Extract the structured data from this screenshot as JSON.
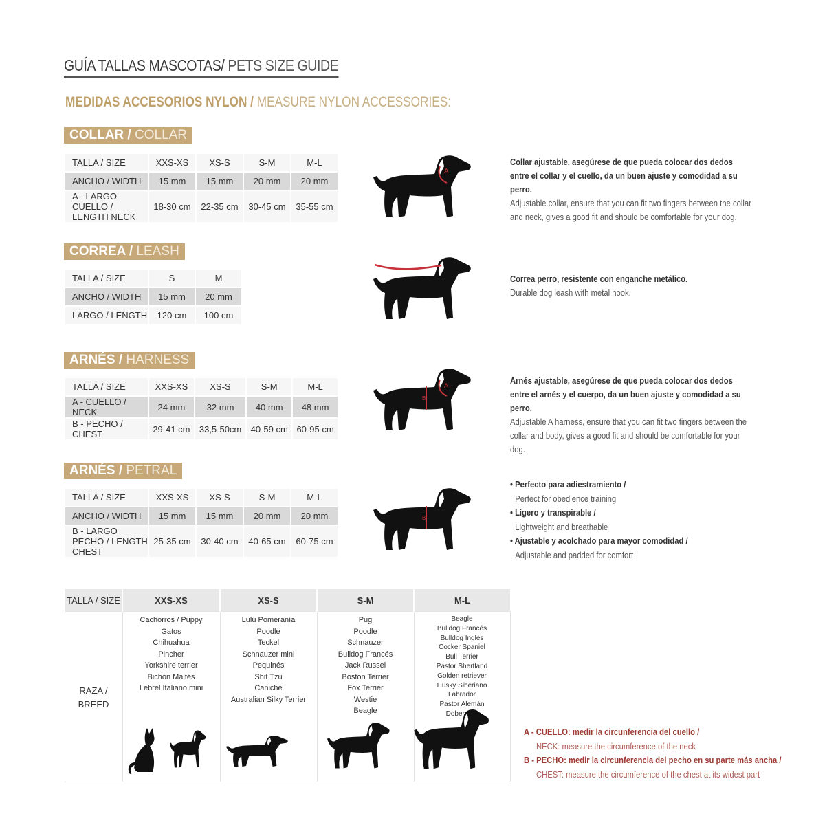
{
  "title": {
    "es": "GUÍA TALLAS MASCOTAS/",
    "en": " PETS SIZE GUIDE"
  },
  "subtitle": {
    "es": "MEDIDAS ACCESORIOS NYLON /",
    "en": " MEASURE NYLON ACCESSORIES:"
  },
  "colors": {
    "gold": "#c6a879",
    "red": "#c8323a",
    "text": "#333333"
  },
  "sections": [
    {
      "badge_es": "COLLAR /",
      "badge_en": " COLLAR",
      "rows": [
        [
          "TALLA / SIZE",
          "XXS-XS",
          "XS-S",
          "S-M",
          "M-L"
        ],
        [
          "ANCHO / WIDTH",
          "15 mm",
          "15 mm",
          "20 mm",
          "20 mm"
        ],
        [
          "A - LARGO CUELLO / LENGTH NECK",
          "18-30 cm",
          "22-35 cm",
          "30-45 cm",
          "35-55 cm"
        ]
      ],
      "desc_es": "Collar ajustable, asegúrese de que pueda colocar dos dedos entre el collar y el cuello, da un buen ajuste y comodidad a su perro.",
      "desc_en": "Adjustable collar, ensure that you can fit two fingers between the collar and neck, gives a good fit and should be comfortable for your dog.",
      "marker": "A"
    },
    {
      "badge_es": "CORREA /",
      "badge_en": " LEASH",
      "rows": [
        [
          "TALLA / SIZE",
          "S",
          "M"
        ],
        [
          "ANCHO / WIDTH",
          "15 mm",
          "20 mm"
        ],
        [
          "LARGO / LENGTH",
          "120 cm",
          "100 cm"
        ]
      ],
      "desc_es": "Correa perro, resistente con enganche metálico.",
      "desc_en": "Durable dog leash with metal hook."
    },
    {
      "badge_es": "ARNÉS /",
      "badge_en": " HARNESS",
      "rows": [
        [
          "TALLA / SIZE",
          "XXS-XS",
          "XS-S",
          "S-M",
          "M-L"
        ],
        [
          "A - CUELLO / NECK",
          "24 mm",
          "32 mm",
          "40 mm",
          "48 mm"
        ],
        [
          "B - PECHO / CHEST",
          "29-41 cm",
          "33,5-50cm",
          "40-59 cm",
          "60-95 cm"
        ]
      ],
      "desc_es": "Arnés ajustable, asegúrese de que pueda colocar dos dedos entre el arnés y el cuerpo, da un buen ajuste y comodidad a su perro.",
      "desc_en": "Adjustable A harness, ensure that you can fit two fingers between the collar and body, gives a good fit and should be comfortable for your dog.",
      "marker": "A B"
    },
    {
      "badge_es": "ARNÉS /",
      "badge_en": " PETRAL",
      "rows": [
        [
          "TALLA / SIZE",
          "XXS-XS",
          "XS-S",
          "S-M",
          "M-L"
        ],
        [
          "ANCHO / WIDTH",
          "15 mm",
          "15 mm",
          "20 mm",
          "20 mm"
        ],
        [
          "B - LARGO PECHO / LENGTH CHEST",
          "25-35 cm",
          "30-40 cm",
          "40-65 cm",
          "60-75 cm"
        ]
      ],
      "bullets": [
        {
          "es": "• Perfecto para adiestramiento /",
          "en": "Perfect for obedience training"
        },
        {
          "es": "• Ligero y transpirable /",
          "en": "Lightweight and breathable"
        },
        {
          "es": "• Ajustable y acolchado para mayor comodidad /",
          "en": "Adjustable and padded for comfort"
        }
      ],
      "marker": "B"
    }
  ],
  "breeds": {
    "header": [
      "TALLA /  SIZE",
      "XXS-XS",
      "XS-S",
      "S-M",
      "M-L"
    ],
    "row_label": "RAZA / BREED",
    "columns": [
      [
        "Cachorros / Puppy",
        "Gatos",
        "Chihuahua",
        "Pincher",
        "Yorkshire terrier",
        "Bichón Maltés",
        "Lebrel Italiano mini"
      ],
      [
        "Lulú Pomeranía",
        "Poodle",
        "Teckel",
        "Schnauzer mini",
        "Pequinés",
        "Shit Tzu",
        "Caniche",
        "Australian Silky Terrier"
      ],
      [
        "Pug",
        "Poodle",
        "Schnauzer",
        "Bulldog Francés",
        "Jack Russel",
        "Boston Terrier",
        "Fox Terrier",
        "Westie",
        "Beagle"
      ],
      [
        "Beagle",
        "Bulldog Francés",
        "Bulldog Inglés",
        "Cocker Spaniel",
        "Bull Terrier",
        "Pastor Shertland",
        "Golden retriever",
        "Husky Siberiano",
        "Labrador",
        "Pastor Alemán",
        "Doberman"
      ]
    ]
  },
  "legend": [
    {
      "es": "A - CUELLO: medir la circunferencia del cuello /",
      "en": "NECK: measure the circumference of the neck"
    },
    {
      "es": "B - PECHO: medir la circunferencia del pecho en su parte más ancha /",
      "en": "CHEST: measure the circumference of the chest at its widest part"
    }
  ]
}
